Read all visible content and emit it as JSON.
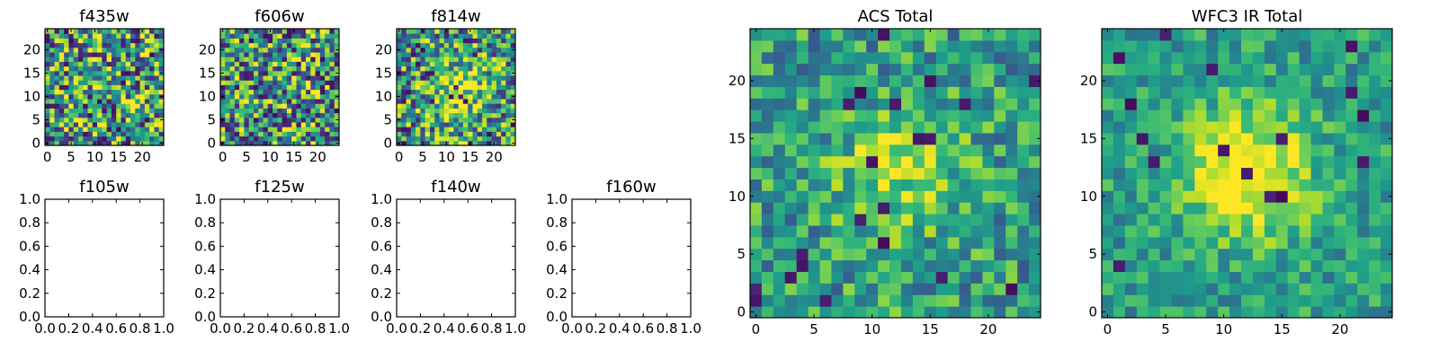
{
  "chart_data": [
    {
      "type": "heatmap",
      "title": "f435w",
      "colormap": "viridis",
      "grid_size": 25,
      "xlim": [
        -0.5,
        24.5
      ],
      "ylim": [
        -0.5,
        24.5
      ],
      "xticks": [
        0,
        5,
        10,
        15,
        20
      ],
      "yticks": [
        0,
        5,
        10,
        15,
        20
      ],
      "seed": 11,
      "blob": 0.0,
      "noise": 1.0,
      "dark_prob": 0.05,
      "grid": false
    },
    {
      "type": "heatmap",
      "title": "f606w",
      "colormap": "viridis",
      "grid_size": 25,
      "xlim": [
        -0.5,
        24.5
      ],
      "ylim": [
        -0.5,
        24.5
      ],
      "xticks": [
        0,
        5,
        10,
        15,
        20
      ],
      "yticks": [
        0,
        5,
        10,
        15,
        20
      ],
      "seed": 23,
      "blob": 0.0,
      "noise": 1.0,
      "dark_prob": 0.05,
      "grid": false
    },
    {
      "type": "heatmap",
      "title": "f814w",
      "colormap": "viridis",
      "grid_size": 25,
      "xlim": [
        -0.5,
        24.5
      ],
      "ylim": [
        -0.5,
        24.5
      ],
      "xticks": [
        0,
        5,
        10,
        15,
        20
      ],
      "yticks": [
        0,
        5,
        10,
        15,
        20
      ],
      "seed": 37,
      "blob": 0.35,
      "noise": 0.9,
      "dark_prob": 0.05,
      "grid": false
    },
    {
      "type": "empty",
      "title": "f105w",
      "xlim": [
        0,
        1
      ],
      "ylim": [
        0,
        1
      ],
      "xticks": [
        "0.0",
        "0.2",
        "0.4",
        "0.6",
        "0.8",
        "1.0"
      ],
      "yticks": [
        "0.0",
        "0.2",
        "0.4",
        "0.6",
        "0.8",
        "1.0"
      ]
    },
    {
      "type": "empty",
      "title": "f125w",
      "xlim": [
        0,
        1
      ],
      "ylim": [
        0,
        1
      ],
      "xticks": [
        "0.0",
        "0.2",
        "0.4",
        "0.6",
        "0.8",
        "1.0"
      ],
      "yticks": [
        "0.0",
        "0.2",
        "0.4",
        "0.6",
        "0.8",
        "1.0"
      ]
    },
    {
      "type": "empty",
      "title": "f140w",
      "xlim": [
        0,
        1
      ],
      "ylim": [
        0,
        1
      ],
      "xticks": [
        "0.0",
        "0.2",
        "0.4",
        "0.6",
        "0.8",
        "1.0"
      ],
      "yticks": [
        "0.0",
        "0.2",
        "0.4",
        "0.6",
        "0.8",
        "1.0"
      ]
    },
    {
      "type": "empty",
      "title": "f160w",
      "xlim": [
        0,
        1
      ],
      "ylim": [
        0,
        1
      ],
      "xticks": [
        "0.0",
        "0.2",
        "0.4",
        "0.6",
        "0.8",
        "1.0"
      ],
      "yticks": [
        "0.0",
        "0.2",
        "0.4",
        "0.6",
        "0.8",
        "1.0"
      ]
    },
    {
      "type": "heatmap",
      "title": "ACS Total",
      "colormap": "viridis",
      "grid_size": 25,
      "xlim": [
        -0.5,
        24.5
      ],
      "ylim": [
        -0.5,
        24.5
      ],
      "xticks": [
        0,
        5,
        10,
        15,
        20
      ],
      "yticks": [
        0,
        5,
        10,
        15,
        20
      ],
      "seed": 51,
      "blob": 0.3,
      "noise": 0.55,
      "dark_prob": 0.025,
      "grid": false
    },
    {
      "type": "heatmap",
      "title": "WFC3 IR Total",
      "colormap": "viridis",
      "grid_size": 25,
      "xlim": [
        -0.5,
        24.5
      ],
      "ylim": [
        -0.5,
        24.5
      ],
      "xticks": [
        0,
        5,
        10,
        15,
        20
      ],
      "yticks": [
        0,
        5,
        10,
        15,
        20
      ],
      "seed": 73,
      "blob": 0.55,
      "noise": 0.4,
      "dark_prob": 0.025,
      "grid": false
    }
  ]
}
